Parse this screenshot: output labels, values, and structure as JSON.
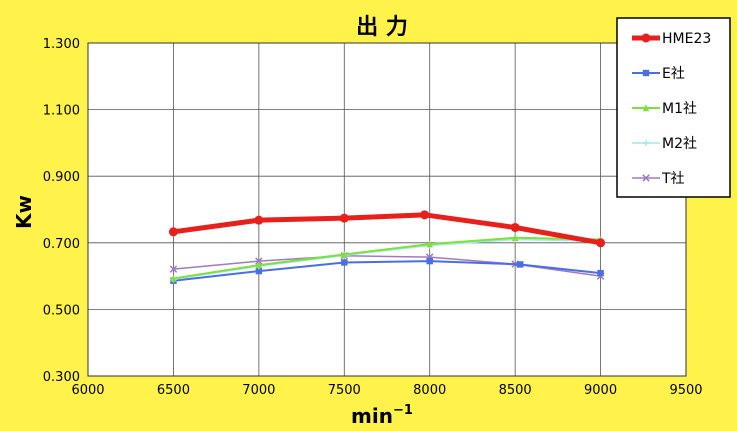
{
  "chart_data": {
    "type": "line",
    "title": "出 力",
    "xlabel": "min",
    "xlabel_sup": "−1",
    "ylabel": "Kw",
    "xlim": [
      6000,
      9500
    ],
    "ylim": [
      0.3,
      1.3
    ],
    "x_ticks": [
      6000,
      6500,
      7000,
      7500,
      8000,
      8500,
      9000,
      9500
    ],
    "y_ticks": [
      0.3,
      0.5,
      0.7,
      0.9,
      1.1,
      1.3
    ],
    "x_tick_labels": [
      "6000",
      "6500",
      "7000",
      "7500",
      "8000",
      "8500",
      "9000",
      "9500"
    ],
    "y_tick_labels": [
      "0.300",
      "0.500",
      "0.700",
      "0.900",
      "1.100",
      "1.300"
    ],
    "grid": true,
    "legend_position": "top-right",
    "series": [
      {
        "name": "HME23",
        "color": "#e8201c",
        "marker": "circle",
        "width": 5,
        "x": [
          6500,
          7000,
          7500,
          7970,
          8500,
          9000
        ],
        "y": [
          0.733,
          0.768,
          0.774,
          0.784,
          0.746,
          0.7
        ]
      },
      {
        "name": "E社",
        "color": "#4a6fe3",
        "marker": "square",
        "width": 2,
        "x": [
          6500,
          7000,
          7500,
          8000,
          8530,
          9000
        ],
        "y": [
          0.586,
          0.615,
          0.641,
          0.645,
          0.635,
          0.609
        ]
      },
      {
        "name": "M1社",
        "color": "#7fe03a",
        "marker": "triangle",
        "width": 2,
        "x": [
          6500,
          7000,
          7500,
          8000,
          8500,
          9000
        ],
        "y": [
          0.593,
          0.633,
          0.665,
          0.696,
          0.715,
          0.71
        ]
      },
      {
        "name": "M2社",
        "color": "#a0e8f0",
        "marker": "cross",
        "width": 1.5,
        "x": [
          6500,
          7000,
          7500,
          8000,
          8500,
          9000
        ],
        "y": [
          0.59,
          0.63,
          0.662,
          0.692,
          0.71,
          0.705
        ]
      },
      {
        "name": "T社",
        "color": "#a07ac0",
        "marker": "x",
        "width": 1.5,
        "x": [
          6500,
          7000,
          7500,
          8000,
          8500,
          9000
        ],
        "y": [
          0.621,
          0.645,
          0.661,
          0.657,
          0.636,
          0.6
        ]
      }
    ]
  }
}
